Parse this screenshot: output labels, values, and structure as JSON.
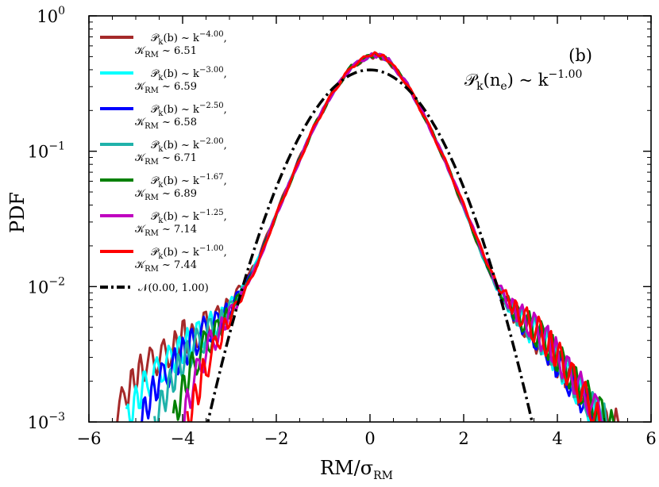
{
  "chart_data": {
    "type": "line",
    "panel_label": "(b)",
    "annotation": {
      "base": "𝒫",
      "sub": "k",
      "arg": "(n",
      "arg_sub": "e",
      "arg_close": ")",
      "rel": " ~ k",
      "exp": "−1.00"
    },
    "xlabel": {
      "main": "RM/σ",
      "sub": "RM"
    },
    "ylabel": "PDF",
    "xlim": [
      -6,
      6
    ],
    "ylim": [
      0.001,
      1
    ],
    "yscale": "log",
    "xticks": [
      -6,
      -4,
      -2,
      0,
      2,
      4,
      6
    ],
    "xtick_labels": [
      "−6",
      "−4",
      "−2",
      "0",
      "2",
      "4",
      "6"
    ],
    "yticks": [
      {
        "value": 0.001,
        "base": "10",
        "exp": "−3"
      },
      {
        "value": 0.01,
        "base": "10",
        "exp": "−2"
      },
      {
        "value": 0.1,
        "base": "10",
        "exp": "−1"
      },
      {
        "value": 1,
        "base": "10",
        "exp": "0"
      }
    ],
    "legend_position": "top-left",
    "series": [
      {
        "line1_pre": "𝒫",
        "line1_sub": "k",
        "line1_mid": "(b) ~ k",
        "line1_exp": "−4.00",
        "line1_post": ",",
        "line2_pre": "𝒦",
        "line2_sub": "RM",
        "line2_post": " ~ 6.51",
        "kurtosis": 6.51,
        "slope": -4.0,
        "color": "#a52a2a",
        "style": "solid",
        "x": [
          -5.5,
          -5.2,
          -5.0,
          -4.8,
          -4.5,
          -4.2,
          -4.0,
          -3.8,
          -3.5,
          -3.2,
          -3.0,
          -2.7,
          -2.4,
          -2.0,
          -1.6,
          -1.2,
          -0.8,
          -0.4,
          0.0,
          0.2,
          0.4,
          0.8,
          1.2,
          1.6,
          2.0,
          2.4,
          2.7,
          3.0,
          3.2,
          3.5,
          3.8,
          4.0,
          4.2,
          4.5,
          4.8,
          5.0,
          5.3
        ],
        "y": [
          0.001,
          0.0016,
          0.0022,
          0.0026,
          0.003,
          0.0034,
          0.0045,
          0.004,
          0.0052,
          0.006,
          0.0075,
          0.0105,
          0.016,
          0.035,
          0.075,
          0.15,
          0.27,
          0.42,
          0.5,
          0.5,
          0.46,
          0.31,
          0.17,
          0.085,
          0.038,
          0.017,
          0.0098,
          0.0068,
          0.0055,
          0.0044,
          0.0034,
          0.0028,
          0.0023,
          0.0016,
          0.0012,
          0.001,
          0.001
        ]
      },
      {
        "line1_pre": "𝒫",
        "line1_sub": "k",
        "line1_mid": "(b) ~ k",
        "line1_exp": "−3.00",
        "line1_post": ",",
        "line2_pre": "𝒦",
        "line2_sub": "RM",
        "line2_post": " ~ 6.59",
        "kurtosis": 6.59,
        "slope": -3.0,
        "color": "#00ffff",
        "style": "solid",
        "x": [
          -5.2,
          -5.0,
          -4.8,
          -4.5,
          -4.2,
          -4.0,
          -3.8,
          -3.5,
          -3.2,
          -3.0,
          -2.7,
          -2.4,
          -2.0,
          -1.6,
          -1.2,
          -0.8,
          -0.4,
          0.0,
          0.2,
          0.4,
          0.8,
          1.2,
          1.6,
          2.0,
          2.4,
          2.7,
          3.0,
          3.2,
          3.5,
          3.8,
          4.0,
          4.3,
          4.6,
          5.0
        ],
        "y": [
          0.001,
          0.0014,
          0.0019,
          0.0024,
          0.003,
          0.0035,
          0.004,
          0.0048,
          0.0057,
          0.007,
          0.01,
          0.0155,
          0.034,
          0.073,
          0.15,
          0.27,
          0.42,
          0.51,
          0.51,
          0.47,
          0.31,
          0.17,
          0.086,
          0.039,
          0.017,
          0.01,
          0.007,
          0.0058,
          0.0046,
          0.0036,
          0.0028,
          0.002,
          0.0014,
          0.001
        ]
      },
      {
        "line1_pre": "𝒫",
        "line1_sub": "k",
        "line1_mid": "(b) ~ k",
        "line1_exp": "−2.50",
        "line1_post": ",",
        "line2_pre": "𝒦",
        "line2_sub": "RM",
        "line2_post": " ~ 6.58",
        "kurtosis": 6.58,
        "slope": -2.5,
        "color": "#0000ff",
        "style": "solid",
        "x": [
          -4.9,
          -4.7,
          -4.5,
          -4.2,
          -4.0,
          -3.8,
          -3.5,
          -3.2,
          -3.0,
          -2.7,
          -2.4,
          -2.0,
          -1.6,
          -1.2,
          -0.8,
          -0.4,
          0.0,
          0.2,
          0.4,
          0.8,
          1.2,
          1.6,
          2.0,
          2.4,
          2.7,
          3.0,
          3.2,
          3.5,
          3.8,
          4.0,
          4.3,
          4.6,
          4.9
        ],
        "y": [
          0.001,
          0.0015,
          0.002,
          0.0026,
          0.0032,
          0.0038,
          0.0047,
          0.0056,
          0.0069,
          0.0098,
          0.0152,
          0.034,
          0.073,
          0.15,
          0.27,
          0.42,
          0.51,
          0.51,
          0.47,
          0.31,
          0.17,
          0.086,
          0.039,
          0.017,
          0.0099,
          0.0069,
          0.0057,
          0.0045,
          0.0035,
          0.0027,
          0.0019,
          0.0014,
          0.001
        ]
      },
      {
        "line1_pre": "𝒫",
        "line1_sub": "k",
        "line1_mid": "(b) ~ k",
        "line1_exp": "−2.00",
        "line1_post": ",",
        "line2_pre": "𝒦",
        "line2_sub": "RM",
        "line2_post": " ~ 6.71",
        "kurtosis": 6.71,
        "slope": -2.0,
        "color": "#20b2aa",
        "style": "solid",
        "x": [
          -4.6,
          -4.4,
          -4.2,
          -4.0,
          -3.8,
          -3.5,
          -3.2,
          -3.0,
          -2.7,
          -2.4,
          -2.0,
          -1.6,
          -1.2,
          -0.8,
          -0.4,
          0.0,
          0.2,
          0.4,
          0.8,
          1.2,
          1.6,
          2.0,
          2.4,
          2.7,
          3.0,
          3.2,
          3.5,
          3.8,
          4.0,
          4.3,
          4.6,
          4.9,
          5.1
        ],
        "y": [
          0.001,
          0.0015,
          0.0021,
          0.0028,
          0.0034,
          0.0044,
          0.0054,
          0.0067,
          0.0096,
          0.015,
          0.034,
          0.072,
          0.15,
          0.27,
          0.42,
          0.51,
          0.51,
          0.47,
          0.31,
          0.17,
          0.086,
          0.039,
          0.017,
          0.01,
          0.007,
          0.0058,
          0.0047,
          0.0037,
          0.0029,
          0.0021,
          0.0015,
          0.0011,
          0.001
        ]
      },
      {
        "line1_pre": "𝒫",
        "line1_sub": "k",
        "line1_mid": "(b) ~ k",
        "line1_exp": "−1.67",
        "line1_post": ",",
        "line2_pre": "𝒦",
        "line2_sub": "RM",
        "line2_post": " ~ 6.89",
        "kurtosis": 6.89,
        "slope": -1.67,
        "color": "#008000",
        "style": "solid",
        "x": [
          -4.2,
          -4.0,
          -3.8,
          -3.5,
          -3.2,
          -3.0,
          -2.7,
          -2.4,
          -2.0,
          -1.6,
          -1.2,
          -0.8,
          -0.4,
          0.0,
          0.2,
          0.4,
          0.8,
          1.2,
          1.6,
          2.0,
          2.4,
          2.7,
          3.0,
          3.2,
          3.5,
          3.8,
          4.0,
          4.3,
          4.6,
          4.9,
          5.2
        ],
        "y": [
          0.001,
          0.0017,
          0.0025,
          0.0038,
          0.005,
          0.0064,
          0.0094,
          0.0148,
          0.034,
          0.072,
          0.15,
          0.27,
          0.42,
          0.51,
          0.51,
          0.47,
          0.31,
          0.17,
          0.086,
          0.039,
          0.017,
          0.0101,
          0.0071,
          0.0059,
          0.0048,
          0.0038,
          0.003,
          0.0022,
          0.0016,
          0.0012,
          0.001
        ]
      },
      {
        "line1_pre": "𝒫",
        "line1_sub": "k",
        "line1_mid": "(b) ~ k",
        "line1_exp": "−1.25",
        "line1_post": ",",
        "line2_pre": "𝒦",
        "line2_sub": "RM",
        "line2_post": " ~ 7.14",
        "kurtosis": 7.14,
        "slope": -1.25,
        "color": "#bf00bf",
        "style": "solid",
        "x": [
          -4.0,
          -3.8,
          -3.5,
          -3.2,
          -3.0,
          -2.7,
          -2.4,
          -2.0,
          -1.6,
          -1.2,
          -0.8,
          -0.4,
          0.0,
          0.2,
          0.4,
          0.8,
          1.2,
          1.6,
          2.0,
          2.4,
          2.7,
          3.0,
          3.2,
          3.5,
          3.8,
          4.0,
          4.3,
          4.6,
          5.0
        ],
        "y": [
          0.001,
          0.0018,
          0.0034,
          0.0047,
          0.0062,
          0.0092,
          0.0146,
          0.034,
          0.072,
          0.15,
          0.27,
          0.42,
          0.51,
          0.51,
          0.47,
          0.31,
          0.17,
          0.086,
          0.04,
          0.018,
          0.0105,
          0.0074,
          0.0062,
          0.005,
          0.0039,
          0.0031,
          0.0022,
          0.0016,
          0.001
        ]
      },
      {
        "line1_pre": "𝒫",
        "line1_sub": "k",
        "line1_mid": "(b) ~ k",
        "line1_exp": "−1.00",
        "line1_post": ",",
        "line2_pre": "𝒦",
        "line2_sub": "RM",
        "line2_post": " ~ 7.44",
        "kurtosis": 7.44,
        "slope": -1.0,
        "color": "#ff0000",
        "style": "solid",
        "x": [
          -3.9,
          -3.7,
          -3.5,
          -3.2,
          -3.0,
          -2.7,
          -2.4,
          -2.0,
          -1.6,
          -1.2,
          -0.8,
          -0.4,
          0.0,
          0.2,
          0.4,
          0.8,
          1.2,
          1.6,
          2.0,
          2.4,
          2.7,
          3.0,
          3.2,
          3.5,
          3.8,
          4.0,
          4.3,
          4.6,
          4.9
        ],
        "y": [
          0.001,
          0.0016,
          0.0026,
          0.0042,
          0.0058,
          0.009,
          0.0145,
          0.034,
          0.072,
          0.15,
          0.27,
          0.42,
          0.52,
          0.52,
          0.47,
          0.31,
          0.17,
          0.086,
          0.04,
          0.018,
          0.0106,
          0.0075,
          0.0062,
          0.005,
          0.0039,
          0.0031,
          0.0022,
          0.0015,
          0.001
        ]
      },
      {
        "line1_pre": "𝒩",
        "line1_sub": "",
        "line1_mid": "(0.00, 1.00)",
        "line1_exp": "",
        "line1_post": "",
        "line2_pre": "",
        "line2_sub": "",
        "line2_post": "",
        "color": "#000000",
        "style": "dashdot",
        "gaussian": {
          "mu": 0.0,
          "sigma": 1.0
        }
      }
    ]
  }
}
